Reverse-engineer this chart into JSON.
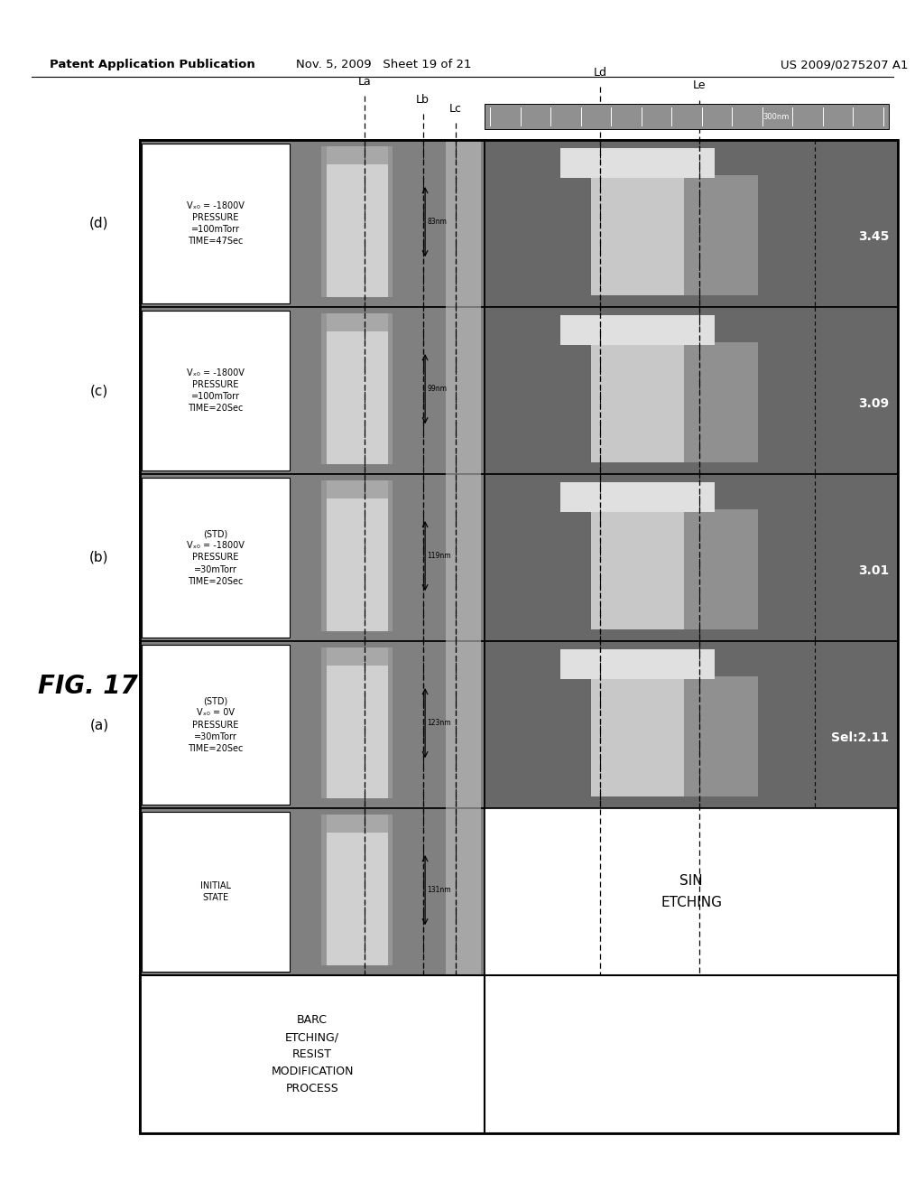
{
  "header_left": "Patent Application Publication",
  "header_mid": "Nov. 5, 2009   Sheet 19 of 21",
  "header_right": "US 2009/0275207 A1",
  "fig_label": "FIG. 17",
  "row_labels_left": [
    "(d)",
    "(c)",
    "(b)",
    "(a)",
    ""
  ],
  "row_col_texts": [
    "Vₓ₀ = -1800V\nPRESSURE\n=100mTorr\nTIME=47Sec",
    "Vₓ₀ = -1800V\nPRESSURE\n=100mTorr\nTIME=20Sec",
    "(STD)\nVₓ₀ = -1800V\nPRESSURE\n=30mTorr\nTIME=20Sec",
    "(STD)\nVₓ₀ = 0V\nPRESSURE\n=30mTorr\nTIME=20Sec",
    "INITIAL\nSTATE"
  ],
  "measurements": [
    "83nm",
    "99nm",
    "119nm",
    "123nm",
    "131nm"
  ],
  "sel_values": [
    "3.45",
    "3.09",
    "3.01",
    "Sel:2.11",
    ""
  ],
  "dashed_line_labels": [
    "La",
    "Lb",
    "Lc",
    "Ld",
    "Le"
  ],
  "bottom_label_left": "BARC\nETCHING/\nRESIST\nMODIFICATION\nPROCESS",
  "bottom_label_right": "SIN\nETCHING",
  "scale_bar_text": "300nm",
  "bg_dark": "#808080",
  "bg_medium": "#a0a0a0",
  "bg_light": "#c8c8c8",
  "pillar_color": "#d8d8d8",
  "pillar_dark": "#b0b0b0",
  "cell_white": "#ffffff"
}
